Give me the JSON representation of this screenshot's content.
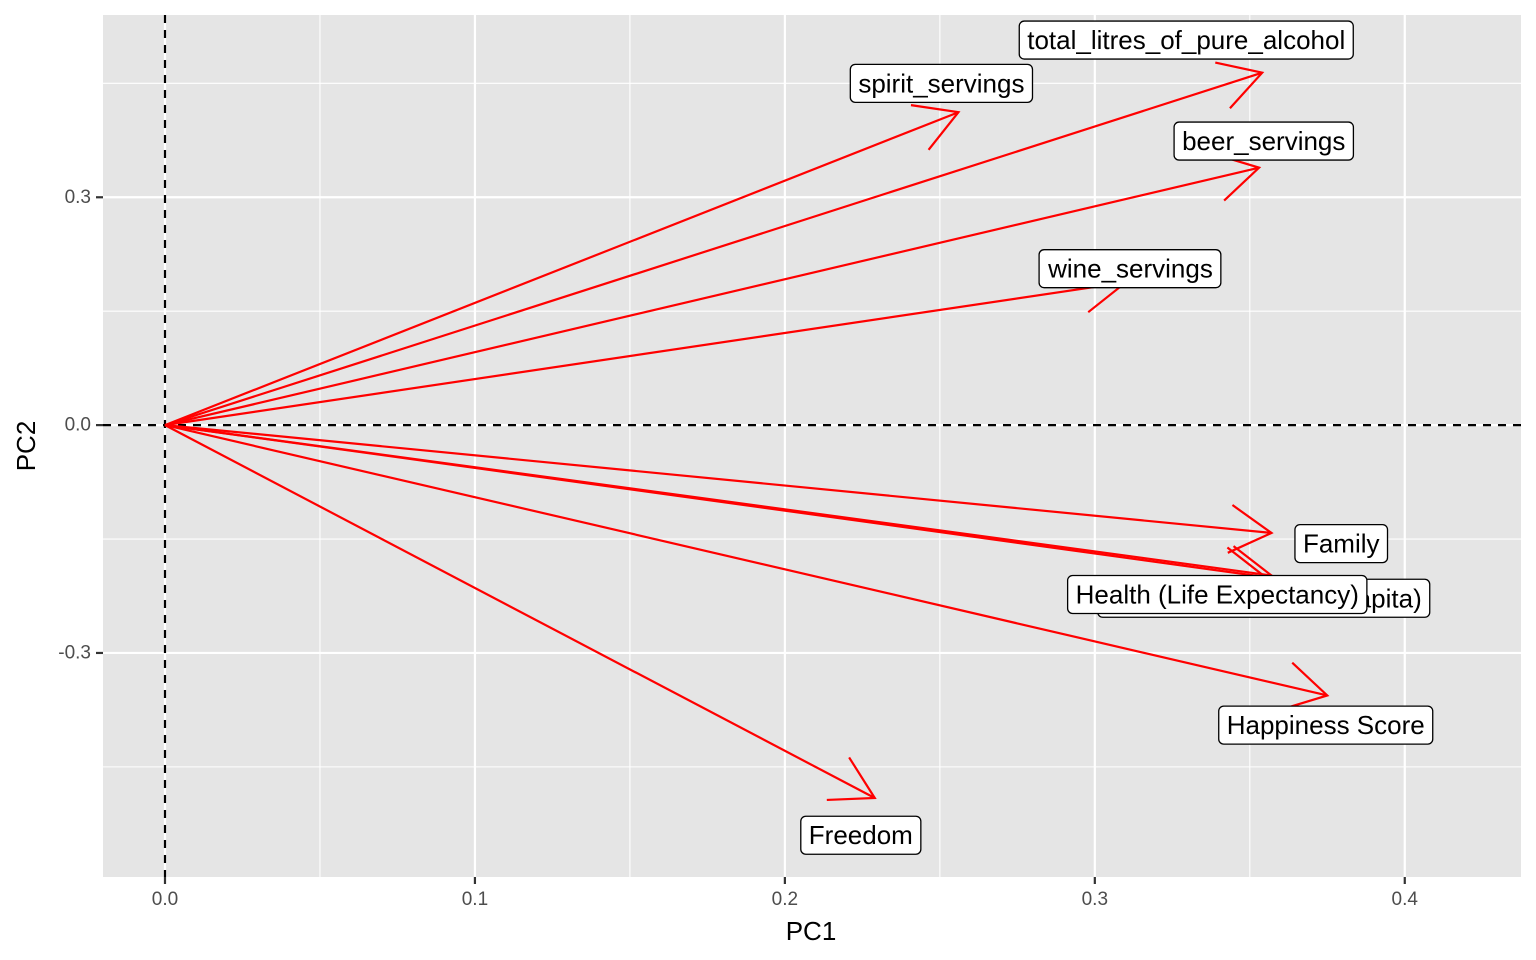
{
  "chart_data": {
    "type": "biplot-vectors",
    "xlabel": "PC1",
    "ylabel": "PC2",
    "xlim": [
      -0.02,
      0.4375
    ],
    "ylim": [
      -0.595,
      0.54
    ],
    "x_ticks": [
      0.0,
      0.1,
      0.2,
      0.3,
      0.4
    ],
    "x_tick_labels": [
      "0.0",
      "0.1",
      "0.2",
      "0.3",
      "0.4"
    ],
    "y_ticks": [
      -0.3,
      0.0,
      0.3
    ],
    "y_tick_labels": [
      "-0.3",
      "0.0",
      "0.3"
    ],
    "grid": true,
    "reference_lines": {
      "x": 0,
      "y": 0,
      "style": "dashed"
    },
    "vector_color": "#ff0000",
    "panel_color": "#e5e5e5",
    "vectors": [
      {
        "name": "spirit_servings",
        "x": 0.256,
        "y": 0.412
      },
      {
        "name": "total_litres_of_pure_alcohol",
        "x": 0.354,
        "y": 0.464
      },
      {
        "name": "beer_servings",
        "x": 0.353,
        "y": 0.339
      },
      {
        "name": "wine_servings",
        "x": 0.31,
        "y": 0.188
      },
      {
        "name": "Family",
        "x": 0.357,
        "y": -0.142
      },
      {
        "name": "Economy (GDP per Capita)",
        "x": 0.357,
        "y": -0.198
      },
      {
        "name": "Health (Life Expectancy)",
        "x": 0.355,
        "y": -0.2
      },
      {
        "name": "Happiness Score",
        "x": 0.375,
        "y": -0.356
      },
      {
        "name": "Freedom",
        "x": 0.229,
        "y": -0.491
      }
    ],
    "labels": [
      {
        "text": "spirit_servings",
        "x": 0.2505,
        "y": 0.45
      },
      {
        "text": "total_litres_of_pure_alcohol",
        "x": 0.3295,
        "y": 0.507
      },
      {
        "text": "beer_servings",
        "x": 0.3545,
        "y": 0.374
      },
      {
        "text": "wine_servings",
        "x": 0.3115,
        "y": 0.206
      },
      {
        "text": "Family",
        "x": 0.3795,
        "y": -0.156
      },
      {
        "text": "Economy (GDP per Capita)",
        "x": 0.3545,
        "y": -0.228
      },
      {
        "text": "Health (Life Expectancy)",
        "x": 0.3395,
        "y": -0.223
      },
      {
        "text": "Happiness Score",
        "x": 0.3745,
        "y": -0.395
      },
      {
        "text": "Freedom",
        "x": 0.2245,
        "y": -0.54
      }
    ]
  }
}
